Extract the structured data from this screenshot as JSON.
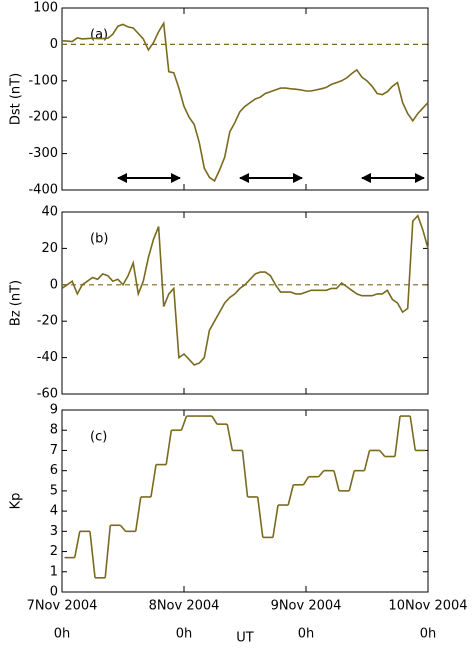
{
  "chart_data": [
    {
      "type": "line",
      "ylabel": "Dst (nT)",
      "annotation": "(a)",
      "color": "#7a6a1e",
      "xlim": [
        0,
        72
      ],
      "ylim": [
        -400,
        100
      ],
      "yticks": [
        -400,
        -300,
        -200,
        -100,
        0,
        100
      ],
      "x": [
        0,
        1,
        2,
        3,
        4,
        5,
        6,
        7,
        8,
        9,
        10,
        11,
        12,
        13,
        14,
        15,
        16,
        17,
        18,
        19,
        20,
        21,
        22,
        23,
        24,
        25,
        26,
        27,
        28,
        29,
        30,
        31,
        32,
        33,
        34,
        35,
        36,
        37,
        38,
        39,
        40,
        41,
        42,
        43,
        44,
        45,
        46,
        47,
        48,
        49,
        50,
        51,
        52,
        53,
        54,
        55,
        56,
        57,
        58,
        59,
        60,
        61,
        62,
        63,
        64,
        65,
        66,
        67,
        68,
        69,
        70,
        71,
        72
      ],
      "values": [
        10,
        9,
        8,
        18,
        15,
        16,
        17,
        16,
        16,
        17,
        28,
        50,
        55,
        48,
        45,
        30,
        15,
        -15,
        5,
        35,
        58,
        -75,
        -78,
        -120,
        -170,
        -200,
        -220,
        -270,
        -340,
        -365,
        -375,
        -345,
        -310,
        -240,
        -215,
        -185,
        -170,
        -160,
        -150,
        -145,
        -135,
        -130,
        -125,
        -120,
        -120,
        -122,
        -123,
        -125,
        -128,
        -128,
        -125,
        -122,
        -118,
        -110,
        -105,
        -100,
        -92,
        -80,
        -70,
        -90,
        -100,
        -115,
        -135,
        -138,
        -130,
        -115,
        -105,
        -160,
        -190,
        -210,
        -190,
        -175,
        -160
      ]
    },
    {
      "type": "line",
      "ylabel": "Bz (nT)",
      "annotation": "(b)",
      "color": "#7a6a1e",
      "xlim": [
        0,
        72
      ],
      "ylim": [
        -60,
        40
      ],
      "yticks": [
        -60,
        -40,
        -20,
        0,
        20,
        40
      ],
      "x": [
        0,
        1,
        2,
        3,
        4,
        5,
        6,
        7,
        8,
        9,
        10,
        11,
        12,
        13,
        14,
        15,
        16,
        17,
        18,
        19,
        20,
        21,
        22,
        23,
        24,
        25,
        26,
        27,
        28,
        29,
        30,
        31,
        32,
        33,
        34,
        35,
        36,
        37,
        38,
        39,
        40,
        41,
        42,
        43,
        44,
        45,
        46,
        47,
        48,
        49,
        50,
        51,
        52,
        53,
        54,
        55,
        56,
        57,
        58,
        59,
        60,
        61,
        62,
        63,
        64,
        65,
        66,
        67,
        68,
        69,
        70,
        71,
        72
      ],
      "values": [
        -2,
        0,
        2,
        -5,
        0,
        2,
        4,
        3,
        6,
        5,
        2,
        3,
        0,
        5,
        12,
        -5,
        2,
        15,
        25,
        32,
        -12,
        -5,
        -2,
        -40,
        -38,
        -41,
        -44,
        -43,
        -40,
        -25,
        -20,
        -15,
        -10,
        -7,
        -5,
        -2,
        0,
        3,
        6,
        7,
        7,
        5,
        0,
        -4,
        -4,
        -4,
        -5,
        -5,
        -4,
        -3,
        -3,
        -3,
        -3,
        -2,
        -2,
        1,
        -1,
        -3,
        -5,
        -6,
        -6,
        -6,
        -5,
        -5,
        -3,
        -8,
        -10,
        -15,
        -13,
        35,
        38,
        30,
        20
      ]
    },
    {
      "type": "step",
      "ylabel": "Kp",
      "annotation": "(c)",
      "color": "#7a6a1e",
      "xlim": [
        0,
        72
      ],
      "ylim": [
        0,
        9
      ],
      "yticks": [
        0,
        1,
        2,
        3,
        4,
        5,
        6,
        7,
        8,
        9
      ],
      "x": [
        1.5,
        4.5,
        7.5,
        10.5,
        13.5,
        16.5,
        19.5,
        22.5,
        25.5,
        28.5,
        31.5,
        34.5,
        37.5,
        40.5,
        43.5,
        46.5,
        49.5,
        52.5,
        55.5,
        58.5,
        61.5,
        64.5,
        67.5,
        70.5
      ],
      "values": [
        1.7,
        3,
        0.7,
        3.3,
        3,
        4.7,
        6.3,
        8,
        8.7,
        8.7,
        8.3,
        7,
        4.7,
        2.7,
        4.3,
        5.3,
        5.7,
        6,
        5,
        6,
        7,
        6.7,
        8.7,
        7
      ],
      "xlabel": "UT",
      "xticks": [
        {
          "value": 0,
          "label": "7Nov 2004"
        },
        {
          "value": 24,
          "label": "8Nov 2004"
        },
        {
          "value": 48,
          "label": "9Nov 2004"
        },
        {
          "value": 72,
          "label": "10Nov 2004"
        }
      ],
      "xtick_sublabels": [
        "0h",
        "0h",
        "0h",
        "0h"
      ]
    }
  ]
}
